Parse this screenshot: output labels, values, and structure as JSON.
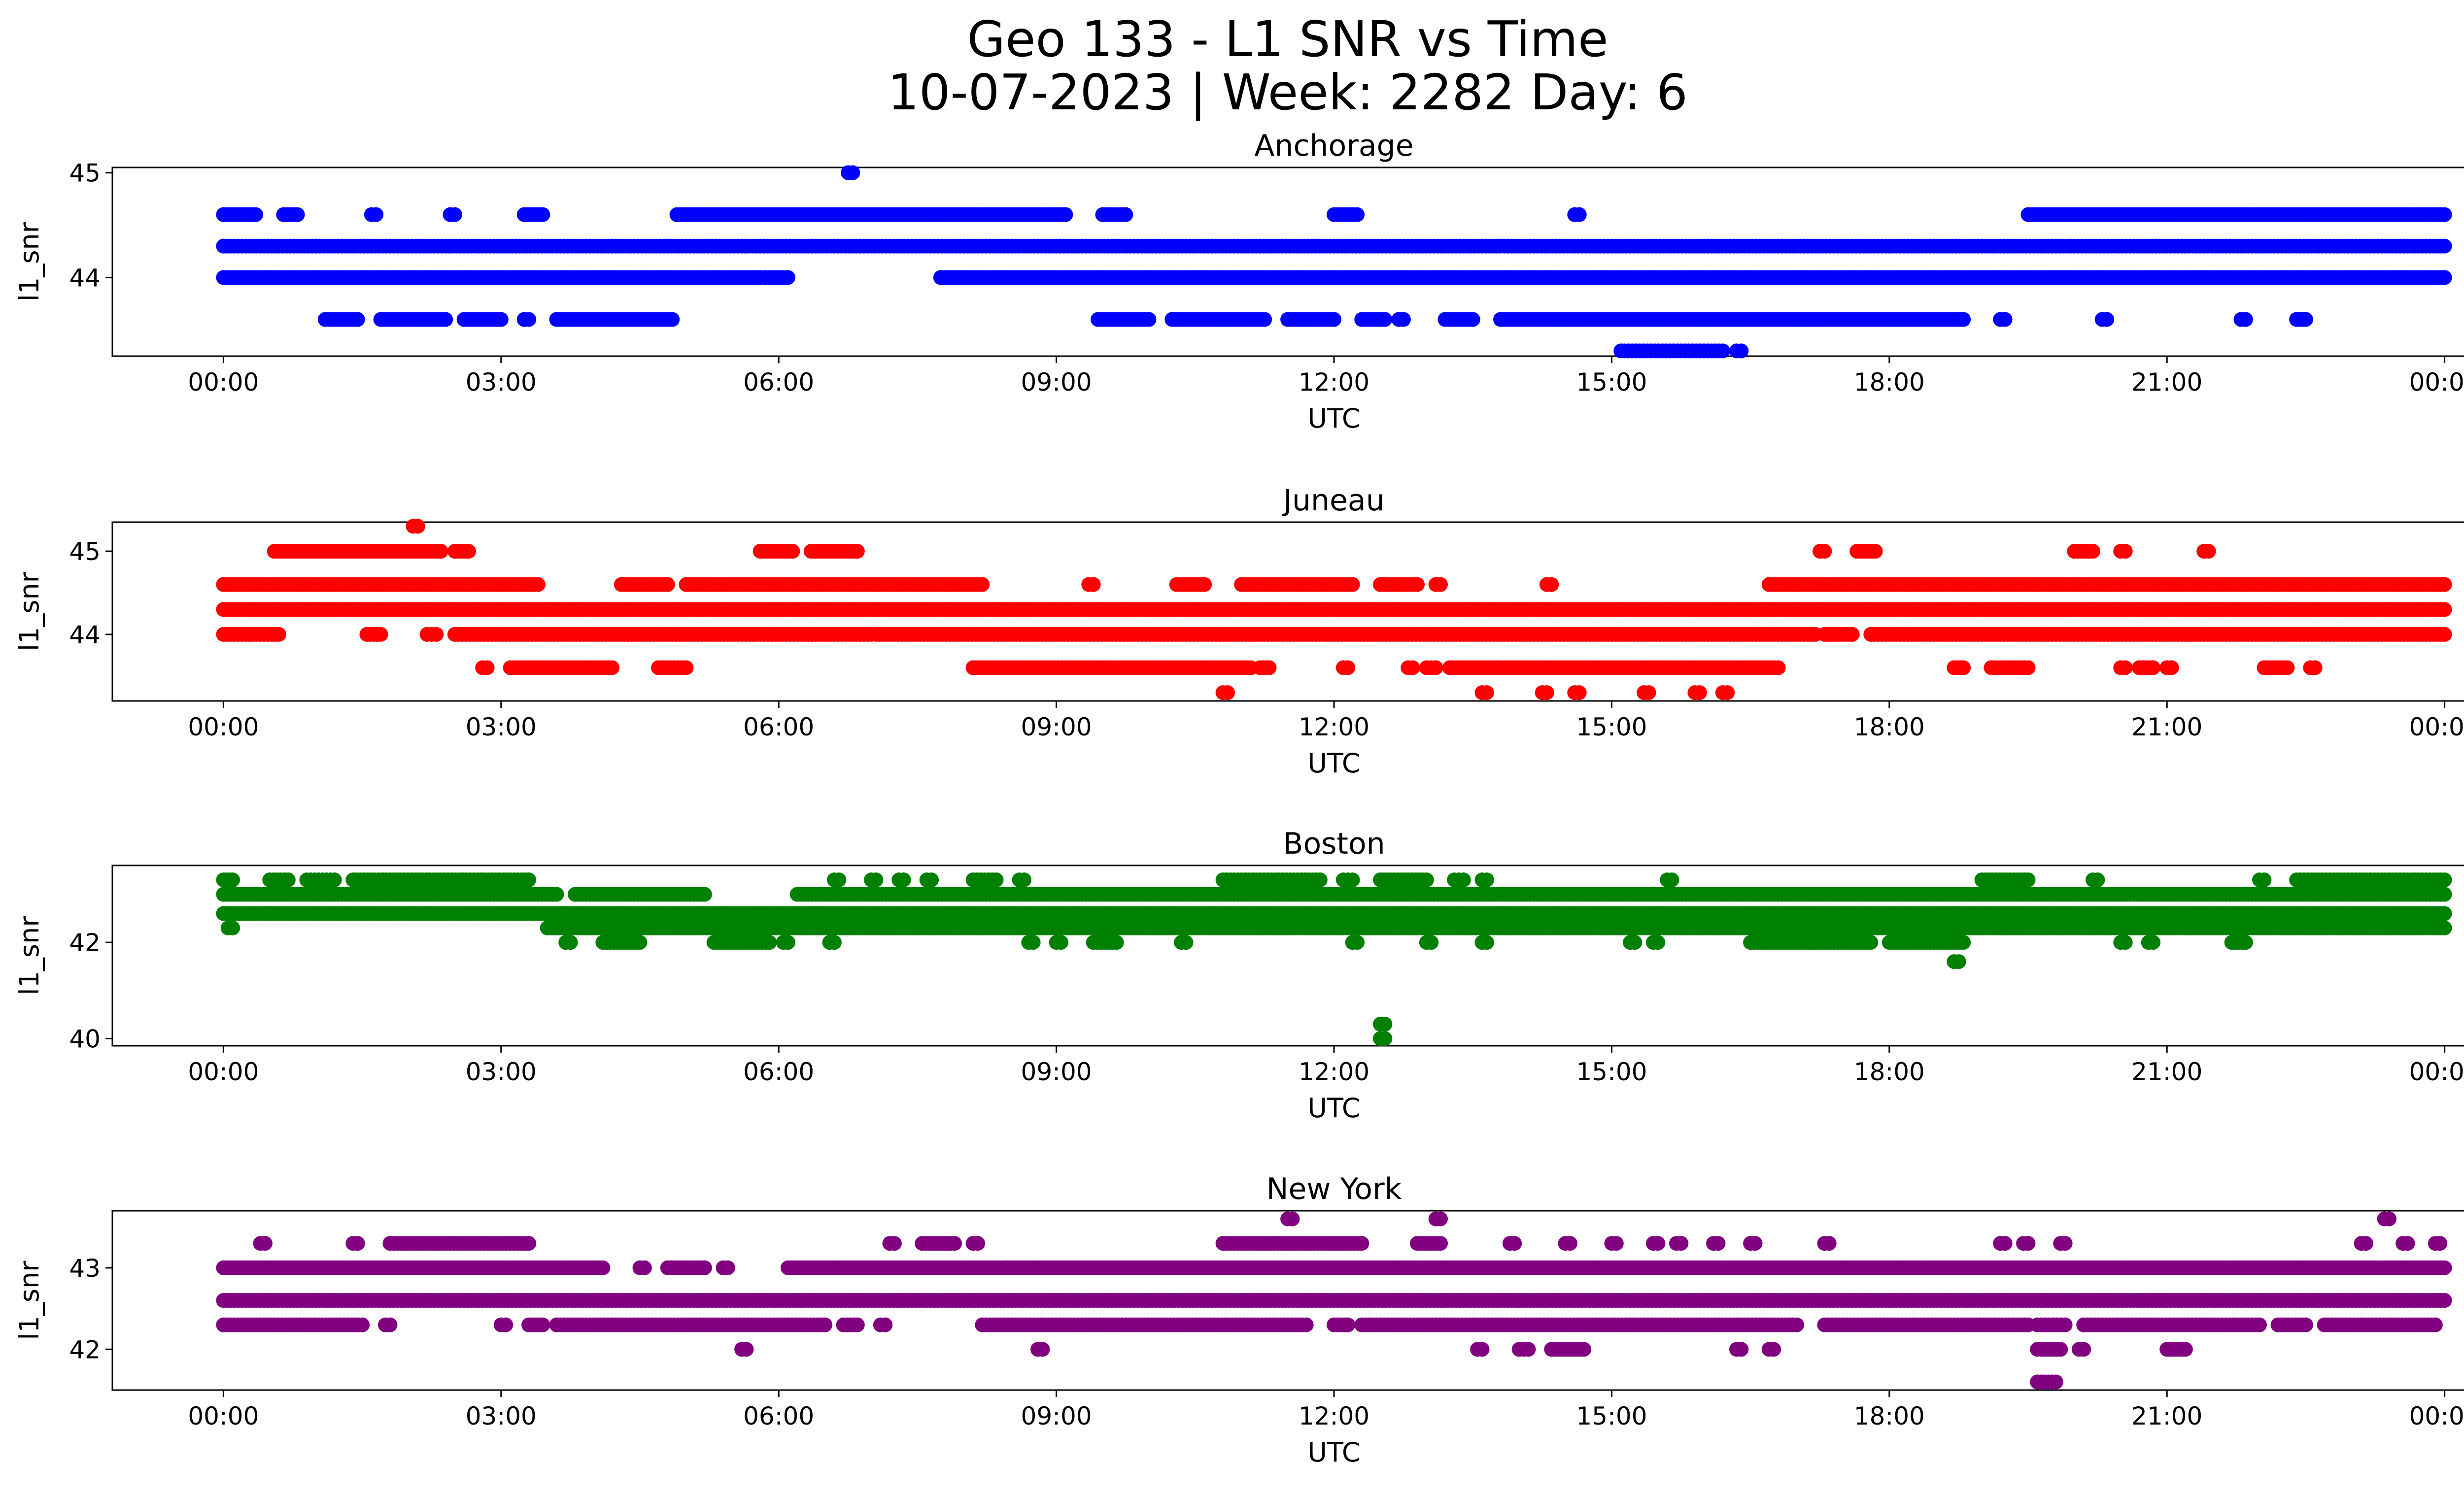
{
  "figure": {
    "title_line1": "Geo 133 - L1 SNR vs Time",
    "title_line2": "10-07-2023 | Week: 2282 Day: 6"
  },
  "chart_data": [
    {
      "type": "scatter",
      "title": "Anchorage",
      "xlabel": "UTC",
      "ylabel": "l1_snr",
      "color": "#0000ff",
      "x_ticks": [
        "00:00",
        "03:00",
        "06:00",
        "09:00",
        "12:00",
        "15:00",
        "18:00",
        "21:00",
        "00:00"
      ],
      "xlim_hours": [
        -1.2,
        25.2
      ],
      "y_ticks": [
        44,
        45
      ],
      "ylim": [
        43.25,
        45.05
      ],
      "levels": [
        {
          "y": 44.3,
          "ranges": [
            [
              0.0,
              24.0
            ]
          ]
        },
        {
          "y": 44.0,
          "ranges": [
            [
              0.0,
              5.8
            ],
            [
              5.85,
              6.1
            ],
            [
              7.75,
              24.0
            ]
          ]
        },
        {
          "y": 44.6,
          "ranges": [
            [
              0.0,
              0.35
            ],
            [
              0.65,
              0.8
            ],
            [
              1.6,
              1.65
            ],
            [
              2.45,
              2.5
            ],
            [
              3.25,
              3.45
            ],
            [
              4.9,
              9.1
            ],
            [
              9.5,
              9.75
            ],
            [
              12.0,
              12.25
            ],
            [
              14.6,
              14.65
            ],
            [
              19.5,
              24.0
            ]
          ]
        },
        {
          "y": 43.6,
          "ranges": [
            [
              1.1,
              1.45
            ],
            [
              1.7,
              2.4
            ],
            [
              2.6,
              3.0
            ],
            [
              3.25,
              3.3
            ],
            [
              3.6,
              4.85
            ],
            [
              9.45,
              10.0
            ],
            [
              10.25,
              11.25
            ],
            [
              11.5,
              12.0
            ],
            [
              12.3,
              12.55
            ],
            [
              12.7,
              12.75
            ],
            [
              13.2,
              13.5
            ],
            [
              13.8,
              18.8
            ],
            [
              19.2,
              19.25
            ],
            [
              20.3,
              20.35
            ],
            [
              21.8,
              21.85
            ],
            [
              22.4,
              22.5
            ]
          ]
        },
        {
          "y": 43.3,
          "ranges": [
            [
              15.1,
              16.2
            ],
            [
              16.35,
              16.4
            ]
          ]
        },
        {
          "y": 45.0,
          "ranges": [
            [
              6.75,
              6.8
            ]
          ]
        }
      ]
    },
    {
      "type": "scatter",
      "title": "Juneau",
      "xlabel": "UTC",
      "ylabel": "l1_snr",
      "color": "#ff0000",
      "x_ticks": [
        "00:00",
        "03:00",
        "06:00",
        "09:00",
        "12:00",
        "15:00",
        "18:00",
        "21:00",
        "00:00"
      ],
      "xlim_hours": [
        -1.2,
        25.2
      ],
      "y_ticks": [
        44,
        45
      ],
      "ylim": [
        43.2,
        45.35
      ],
      "levels": [
        {
          "y": 44.3,
          "ranges": [
            [
              0.0,
              24.0
            ]
          ]
        },
        {
          "y": 44.0,
          "ranges": [
            [
              0.0,
              0.6
            ],
            [
              1.55,
              1.7
            ],
            [
              2.2,
              2.3
            ],
            [
              2.5,
              7.0
            ],
            [
              7.05,
              17.2
            ],
            [
              17.3,
              17.6
            ],
            [
              17.8,
              24.0
            ]
          ]
        },
        {
          "y": 44.6,
          "ranges": [
            [
              0.0,
              3.4
            ],
            [
              4.3,
              4.8
            ],
            [
              5.0,
              8.2
            ],
            [
              9.35,
              9.4
            ],
            [
              10.3,
              10.6
            ],
            [
              11.0,
              12.2
            ],
            [
              12.5,
              12.9
            ],
            [
              13.1,
              13.15
            ],
            [
              14.3,
              14.35
            ],
            [
              16.7,
              24.0
            ]
          ]
        },
        {
          "y": 45.0,
          "ranges": [
            [
              0.55,
              2.35
            ],
            [
              2.5,
              2.65
            ],
            [
              5.8,
              6.15
            ],
            [
              6.35,
              6.85
            ],
            [
              17.25,
              17.3
            ],
            [
              17.65,
              17.85
            ],
            [
              20.0,
              20.2
            ],
            [
              20.5,
              20.55
            ],
            [
              21.4,
              21.45
            ]
          ]
        },
        {
          "y": 43.6,
          "ranges": [
            [
              2.8,
              2.85
            ],
            [
              3.1,
              4.2
            ],
            [
              4.7,
              5.0
            ],
            [
              8.1,
              11.1
            ],
            [
              11.2,
              11.3
            ],
            [
              12.1,
              12.15
            ],
            [
              12.8,
              12.85
            ],
            [
              13.0,
              13.1
            ],
            [
              13.25,
              16.8
            ],
            [
              18.7,
              18.8
            ],
            [
              19.1,
              19.5
            ],
            [
              20.5,
              20.55
            ],
            [
              20.7,
              20.85
            ],
            [
              21.0,
              21.05
            ],
            [
              22.05,
              22.3
            ],
            [
              22.55,
              22.6
            ]
          ]
        },
        {
          "y": 45.3,
          "ranges": [
            [
              2.05,
              2.1
            ]
          ]
        },
        {
          "y": 43.3,
          "ranges": [
            [
              10.8,
              10.85
            ],
            [
              13.6,
              13.65
            ],
            [
              14.25,
              14.3
            ],
            [
              14.6,
              14.65
            ],
            [
              15.35,
              15.4
            ],
            [
              15.9,
              15.95
            ],
            [
              16.2,
              16.25
            ]
          ]
        }
      ]
    },
    {
      "type": "scatter",
      "title": "Boston",
      "xlabel": "UTC",
      "ylabel": "l1_snr",
      "color": "#008000",
      "x_ticks": [
        "00:00",
        "03:00",
        "06:00",
        "09:00",
        "12:00",
        "15:00",
        "18:00",
        "21:00",
        "00:00"
      ],
      "xlim_hours": [
        -1.2,
        25.2
      ],
      "y_ticks": [
        40,
        42
      ],
      "ylim": [
        39.85,
        43.6
      ],
      "levels": [
        {
          "y": 43.0,
          "ranges": [
            [
              0.0,
              3.6
            ],
            [
              3.8,
              5.2
            ],
            [
              6.2,
              24.0
            ]
          ]
        },
        {
          "y": 42.6,
          "ranges": [
            [
              0.0,
              24.0
            ]
          ]
        },
        {
          "y": 42.3,
          "ranges": [
            [
              0.05,
              0.1
            ],
            [
              3.5,
              24.0
            ]
          ]
        },
        {
          "y": 43.3,
          "ranges": [
            [
              0.0,
              0.1
            ],
            [
              0.5,
              0.7
            ],
            [
              0.9,
              1.2
            ],
            [
              1.4,
              3.3
            ],
            [
              6.6,
              6.65
            ],
            [
              7.0,
              7.05
            ],
            [
              7.3,
              7.35
            ],
            [
              7.6,
              7.65
            ],
            [
              8.1,
              8.35
            ],
            [
              8.6,
              8.65
            ],
            [
              10.8,
              11.85
            ],
            [
              12.1,
              12.2
            ],
            [
              12.5,
              13.0
            ],
            [
              13.3,
              13.4
            ],
            [
              13.6,
              13.65
            ],
            [
              15.6,
              15.65
            ],
            [
              19.0,
              19.5
            ],
            [
              20.2,
              20.25
            ],
            [
              22.0,
              22.05
            ],
            [
              22.4,
              24.0
            ]
          ]
        },
        {
          "y": 42.0,
          "ranges": [
            [
              3.7,
              3.75
            ],
            [
              4.1,
              4.5
            ],
            [
              5.3,
              5.9
            ],
            [
              6.05,
              6.1
            ],
            [
              6.55,
              6.6
            ],
            [
              8.7,
              8.75
            ],
            [
              9.0,
              9.05
            ],
            [
              9.4,
              9.65
            ],
            [
              10.35,
              10.4
            ],
            [
              12.2,
              12.25
            ],
            [
              13.0,
              13.05
            ],
            [
              13.6,
              13.65
            ],
            [
              15.2,
              15.25
            ],
            [
              15.45,
              15.5
            ],
            [
              16.5,
              17.8
            ],
            [
              18.0,
              18.8
            ],
            [
              20.5,
              20.55
            ],
            [
              20.8,
              20.85
            ],
            [
              21.7,
              21.85
            ]
          ]
        },
        {
          "y": 41.6,
          "ranges": [
            [
              18.7,
              18.75
            ]
          ]
        },
        {
          "y": 40.3,
          "ranges": [
            [
              12.5,
              12.55
            ]
          ]
        },
        {
          "y": 40.0,
          "ranges": [
            [
              12.5,
              12.55
            ]
          ]
        }
      ]
    },
    {
      "type": "scatter",
      "title": "New York",
      "xlabel": "UTC",
      "ylabel": "l1_snr",
      "color": "#800080",
      "x_ticks": [
        "00:00",
        "03:00",
        "06:00",
        "09:00",
        "12:00",
        "15:00",
        "18:00",
        "21:00",
        "00:00"
      ],
      "xlim_hours": [
        -1.2,
        25.2
      ],
      "y_ticks": [
        42,
        43
      ],
      "ylim": [
        41.5,
        43.7
      ],
      "levels": [
        {
          "y": 42.6,
          "ranges": [
            [
              0.0,
              24.0
            ]
          ]
        },
        {
          "y": 43.0,
          "ranges": [
            [
              0.0,
              4.1
            ],
            [
              4.5,
              4.55
            ],
            [
              4.8,
              5.2
            ],
            [
              5.4,
              5.45
            ],
            [
              6.1,
              24.0
            ]
          ]
        },
        {
          "y": 42.3,
          "ranges": [
            [
              0.0,
              1.5
            ],
            [
              1.75,
              1.8
            ],
            [
              3.0,
              3.05
            ],
            [
              3.3,
              3.45
            ],
            [
              3.6,
              6.5
            ],
            [
              6.7,
              6.85
            ],
            [
              7.1,
              7.15
            ],
            [
              8.2,
              11.7
            ],
            [
              12.0,
              12.15
            ],
            [
              12.3,
              17.0
            ],
            [
              17.3,
              19.5
            ],
            [
              19.6,
              19.9
            ],
            [
              20.1,
              22.0
            ],
            [
              22.2,
              22.5
            ],
            [
              22.7,
              23.9
            ]
          ]
        },
        {
          "y": 43.3,
          "ranges": [
            [
              0.4,
              0.45
            ],
            [
              1.4,
              1.45
            ],
            [
              1.8,
              3.3
            ],
            [
              7.2,
              7.25
            ],
            [
              7.55,
              7.9
            ],
            [
              8.1,
              8.15
            ],
            [
              10.8,
              12.3
            ],
            [
              12.9,
              13.15
            ],
            [
              13.9,
              13.95
            ],
            [
              14.5,
              14.55
            ],
            [
              15.0,
              15.05
            ],
            [
              15.45,
              15.5
            ],
            [
              15.7,
              15.75
            ],
            [
              16.1,
              16.15
            ],
            [
              16.5,
              16.55
            ],
            [
              17.3,
              17.35
            ],
            [
              19.2,
              19.25
            ],
            [
              19.45,
              19.5
            ],
            [
              19.85,
              19.9
            ],
            [
              23.1,
              23.15
            ],
            [
              23.55,
              23.6
            ],
            [
              23.9,
              23.95
            ]
          ]
        },
        {
          "y": 43.6,
          "ranges": [
            [
              11.5,
              11.55
            ],
            [
              13.1,
              13.15
            ],
            [
              23.35,
              23.4
            ]
          ]
        },
        {
          "y": 42.0,
          "ranges": [
            [
              5.6,
              5.65
            ],
            [
              8.8,
              8.85
            ],
            [
              13.55,
              13.6
            ],
            [
              14.0,
              14.1
            ],
            [
              14.35,
              14.7
            ],
            [
              16.35,
              16.4
            ],
            [
              16.7,
              16.75
            ],
            [
              19.6,
              19.85
            ],
            [
              20.05,
              20.1
            ],
            [
              21.0,
              21.2
            ]
          ]
        },
        {
          "y": 41.6,
          "ranges": [
            [
              19.6,
              19.8
            ]
          ]
        }
      ]
    }
  ]
}
